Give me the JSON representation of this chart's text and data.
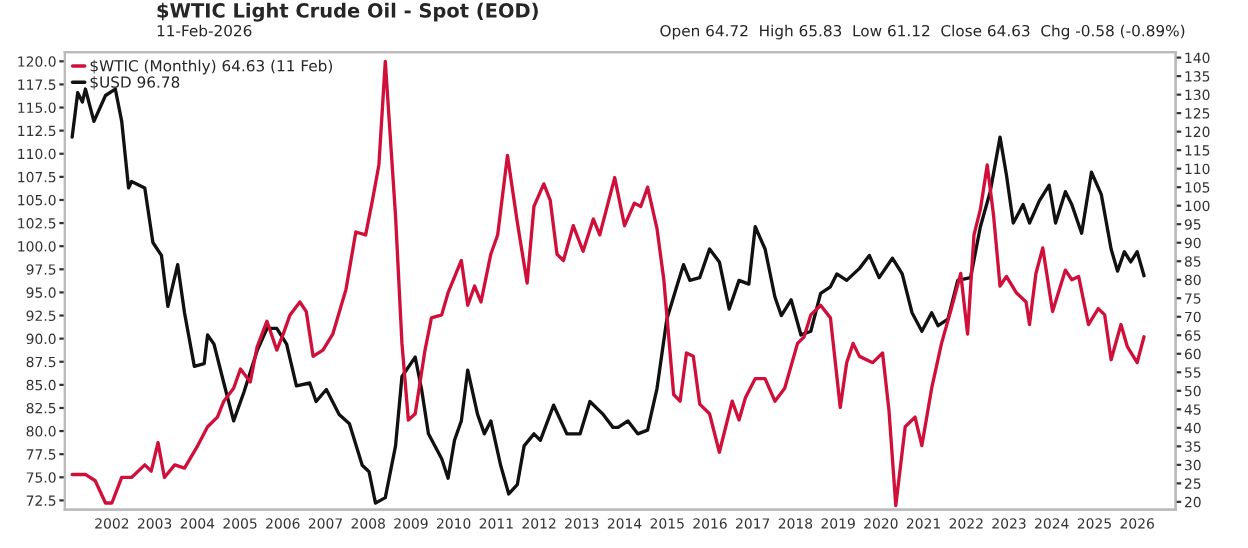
{
  "chart_data": {
    "type": "line",
    "title": "$WTIC Light Crude Oil - Spot (EOD)",
    "subtitle": "11-Feb-2026",
    "annotations": [
      "Open 64.72  High 65.83  Low 61.12  Close 64.63  Chg -0.58 (-0.89%)"
    ],
    "legend": "top left",
    "xlim": [
      2000.9,
      2026.9
    ],
    "xticks": [
      2002,
      2003,
      2004,
      2005,
      2006,
      2007,
      2008,
      2009,
      2010,
      2011,
      2012,
      2013,
      2014,
      2015,
      2016,
      2017,
      2018,
      2019,
      2020,
      2021,
      2022,
      2023,
      2024,
      2025,
      2026
    ],
    "ylim": [
      71.5,
      121.0
    ],
    "yticks": [
      {
        "value": 72.5,
        "label": "72.5"
      },
      {
        "value": 75,
        "label": "75.0"
      },
      {
        "value": 77.5,
        "label": "77.5"
      },
      {
        "value": 80,
        "label": "80.0"
      },
      {
        "value": 82.5,
        "label": "82.5"
      },
      {
        "value": 85,
        "label": "85.0"
      },
      {
        "value": 87.5,
        "label": "87.5"
      },
      {
        "value": 90,
        "label": "90.0"
      },
      {
        "value": 92.5,
        "label": "92.5"
      },
      {
        "value": 95,
        "label": "95.0"
      },
      {
        "value": 97.5,
        "label": "97.5"
      },
      {
        "value": 100,
        "label": "100.0"
      },
      {
        "value": 102.5,
        "label": "102.5"
      },
      {
        "value": 105,
        "label": "105.0"
      },
      {
        "value": 107.5,
        "label": "107.5"
      },
      {
        "value": 110,
        "label": "110.0"
      },
      {
        "value": 112.5,
        "label": "112.5"
      },
      {
        "value": 115,
        "label": "115.0"
      },
      {
        "value": 117.5,
        "label": "117.5"
      },
      {
        "value": 120,
        "label": "120.0"
      }
    ],
    "y2lim": [
      17.9,
      141.5
    ],
    "y2ticks": [
      20,
      25,
      30,
      35,
      40,
      45,
      50,
      55,
      60,
      65,
      70,
      75,
      80,
      85,
      90,
      95,
      100,
      105,
      110,
      115,
      120,
      125,
      130,
      135,
      140
    ],
    "series": [
      {
        "name": "$WTIC (Monthly) 64.63 (11 Feb)",
        "color": "#d0103a",
        "axis": "y2",
        "x": [
          2001.07,
          2001.38,
          2001.61,
          2001.85,
          2002.0,
          2002.23,
          2002.46,
          2002.77,
          2002.92,
          2003.08,
          2003.23,
          2003.47,
          2003.7,
          2004.01,
          2004.24,
          2004.47,
          2004.62,
          2004.85,
          2005.01,
          2005.24,
          2005.4,
          2005.63,
          2005.86,
          2006.01,
          2006.17,
          2006.4,
          2006.55,
          2006.71,
          2006.94,
          2007.17,
          2007.48,
          2007.71,
          2007.94,
          2008.1,
          2008.25,
          2008.4,
          2008.64,
          2008.79,
          2008.94,
          2009.1,
          2009.33,
          2009.48,
          2009.72,
          2009.87,
          2010.18,
          2010.33,
          2010.49,
          2010.64,
          2010.87,
          2011.03,
          2011.26,
          2011.49,
          2011.72,
          2011.88,
          2012.11,
          2012.26,
          2012.42,
          2012.57,
          2012.8,
          2013.03,
          2013.27,
          2013.42,
          2013.77,
          2014.0,
          2014.23,
          2014.38,
          2014.54,
          2014.76,
          2014.92,
          2015.15,
          2015.3,
          2015.45,
          2015.61,
          2015.76,
          2015.99,
          2016.22,
          2016.52,
          2016.68,
          2016.83,
          2017.06,
          2017.29,
          2017.52,
          2017.75,
          2018.05,
          2018.2,
          2018.36,
          2018.59,
          2018.82,
          2019.05,
          2019.2,
          2019.35,
          2019.5,
          2019.81,
          2020.04,
          2020.19,
          2020.35,
          2020.57,
          2020.8,
          2020.96,
          2021.19,
          2021.42,
          2021.65,
          2021.87,
          2022.03,
          2022.18,
          2022.33,
          2022.49,
          2022.64,
          2022.79,
          2022.94,
          2023.17,
          2023.4,
          2023.48,
          2023.63,
          2023.79,
          2024.02,
          2024.32,
          2024.47,
          2024.63,
          2024.86,
          2025.09,
          2025.24,
          2025.39,
          2025.62,
          2025.77,
          2026.0,
          2026.16
        ],
        "values": [
          27.4,
          27.4,
          25.7,
          19.7,
          19.7,
          26.6,
          26.6,
          30.0,
          28.3,
          36.0,
          26.6,
          30.0,
          29.1,
          35.2,
          40.3,
          42.9,
          47.2,
          50.7,
          55.9,
          52.4,
          61.9,
          68.8,
          61.0,
          65.3,
          70.5,
          74.0,
          71.4,
          59.3,
          61.0,
          65.3,
          77.4,
          92.9,
          92.1,
          101.5,
          111.0,
          139.0,
          97.2,
          62.8,
          42.1,
          43.8,
          61.0,
          69.7,
          70.5,
          76.5,
          85.2,
          73.1,
          78.3,
          74.0,
          86.9,
          92.1,
          113.6,
          95.5,
          79.1,
          99.8,
          105.9,
          101.5,
          86.9,
          85.2,
          94.6,
          87.7,
          96.4,
          92.1,
          107.6,
          94.6,
          100.7,
          99.8,
          105.0,
          93.8,
          80.0,
          49.0,
          47.2,
          60.2,
          59.3,
          46.4,
          43.8,
          33.4,
          47.2,
          42.1,
          48.1,
          53.3,
          53.3,
          47.2,
          50.7,
          62.8,
          64.5,
          70.5,
          73.1,
          69.7,
          45.5,
          57.6,
          62.8,
          59.3,
          57.6,
          60.2,
          44.7,
          19.0,
          40.3,
          42.9,
          35.2,
          50.7,
          62.8,
          72.2,
          81.7,
          65.3,
          92.1,
          99.0,
          111.0,
          97.2,
          78.3,
          80.9,
          76.5,
          74.0,
          67.9,
          81.7,
          88.6,
          71.4,
          82.6,
          80.0,
          80.9,
          67.9,
          72.2,
          70.5,
          58.4,
          67.9,
          61.9,
          57.6,
          64.6
        ]
      },
      {
        "name": "$USD 96.78",
        "color": "#111111",
        "axis": "y",
        "x": [
          2001.07,
          2001.2,
          2001.31,
          2001.38,
          2001.58,
          2001.85,
          2002.08,
          2002.23,
          2002.39,
          2002.46,
          2002.77,
          2002.96,
          2003.16,
          2003.31,
          2003.54,
          2003.7,
          2003.93,
          2004.16,
          2004.24,
          2004.39,
          2004.62,
          2004.85,
          2005.09,
          2005.4,
          2005.63,
          2005.86,
          2006.09,
          2006.32,
          2006.63,
          2006.78,
          2007.02,
          2007.32,
          2007.56,
          2007.86,
          2008.02,
          2008.17,
          2008.4,
          2008.64,
          2008.79,
          2009.1,
          2009.25,
          2009.41,
          2009.72,
          2009.87,
          2010.02,
          2010.18,
          2010.33,
          2010.56,
          2010.72,
          2010.87,
          2011.1,
          2011.29,
          2011.49,
          2011.65,
          2011.88,
          2012.03,
          2012.34,
          2012.65,
          2012.96,
          2013.19,
          2013.5,
          2013.73,
          2013.85,
          2014.08,
          2014.31,
          2014.54,
          2014.76,
          2014.99,
          2015.22,
          2015.38,
          2015.53,
          2015.76,
          2015.99,
          2016.22,
          2016.45,
          2016.68,
          2016.91,
          2017.06,
          2017.29,
          2017.52,
          2017.67,
          2017.9,
          2018.13,
          2018.36,
          2018.59,
          2018.82,
          2018.97,
          2019.2,
          2019.5,
          2019.73,
          2019.96,
          2020.27,
          2020.5,
          2020.73,
          2020.96,
          2021.19,
          2021.34,
          2021.57,
          2021.8,
          2022.1,
          2022.33,
          2022.56,
          2022.79,
          2022.94,
          2023.1,
          2023.33,
          2023.48,
          2023.71,
          2023.94,
          2024.09,
          2024.32,
          2024.47,
          2024.7,
          2024.93,
          2025.16,
          2025.39,
          2025.54,
          2025.7,
          2025.85,
          2026.0,
          2026.16
        ],
        "values": [
          111.8,
          116.6,
          115.6,
          117.0,
          113.5,
          116.3,
          117.0,
          113.5,
          106.3,
          107.0,
          106.3,
          100.4,
          99.0,
          93.5,
          98.0,
          92.8,
          87.0,
          87.3,
          90.4,
          89.4,
          85.2,
          81.1,
          84.2,
          88.7,
          91.1,
          91.1,
          89.4,
          84.9,
          85.2,
          83.2,
          84.5,
          81.8,
          80.8,
          76.3,
          75.6,
          72.2,
          72.8,
          78.4,
          85.9,
          88.0,
          84.5,
          79.7,
          77.0,
          74.9,
          79.0,
          81.1,
          86.6,
          81.8,
          79.7,
          81.1,
          76.3,
          73.2,
          74.2,
          78.4,
          79.7,
          79.0,
          82.8,
          79.7,
          79.7,
          83.2,
          81.8,
          80.4,
          80.4,
          81.1,
          79.7,
          80.1,
          84.6,
          92.1,
          95.6,
          98.0,
          96.3,
          96.6,
          99.7,
          98.3,
          93.2,
          96.3,
          95.9,
          102.1,
          99.7,
          94.5,
          92.5,
          94.2,
          90.4,
          90.8,
          94.9,
          95.6,
          97.0,
          96.3,
          97.6,
          99.0,
          96.6,
          98.7,
          97.0,
          92.8,
          90.8,
          92.8,
          91.4,
          92.1,
          96.3,
          96.6,
          102.1,
          105.9,
          111.8,
          107.7,
          102.5,
          104.5,
          102.5,
          104.9,
          106.6,
          102.5,
          105.9,
          104.5,
          101.4,
          108.0,
          105.6,
          99.7,
          97.3,
          99.4,
          98.3,
          99.4,
          96.8
        ]
      }
    ]
  }
}
